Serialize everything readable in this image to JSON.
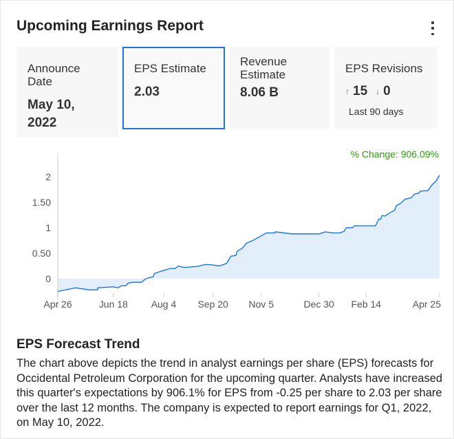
{
  "title": "Upcoming Earnings Report",
  "stats": {
    "announce": {
      "label": "Announce Date",
      "value": "May 10, 2022"
    },
    "eps": {
      "label": "EPS Estimate",
      "value": "2.03"
    },
    "revenue": {
      "label": "Revenue Estimate",
      "value": "8.06 B"
    },
    "revisions": {
      "label": "EPS Revisions",
      "up": "15",
      "down": "0",
      "period": "Last 90 days"
    }
  },
  "percent_change": "% Change: 906.09%",
  "chart_data": {
    "type": "area",
    "x_unit": "days since Apr 26",
    "xlim": [
      0,
      364
    ],
    "ylim": [
      -0.27,
      2.35
    ],
    "y_ticks": [
      {
        "v": 2,
        "label": "2"
      },
      {
        "v": 1.5,
        "label": "1.50"
      },
      {
        "v": 1,
        "label": "1"
      },
      {
        "v": 0.5,
        "label": "0.50"
      },
      {
        "v": 0,
        "label": "0"
      }
    ],
    "x_ticks": [
      {
        "d": 0,
        "label": "Apr 26"
      },
      {
        "d": 53,
        "label": "Jun 18"
      },
      {
        "d": 101,
        "label": "Aug 4"
      },
      {
        "d": 148,
        "label": "Sep 20"
      },
      {
        "d": 194,
        "label": "Nov 5"
      },
      {
        "d": 249,
        "label": "Dec 30"
      },
      {
        "d": 294,
        "label": "Feb 14"
      },
      {
        "d": 364,
        "label": "Apr 25"
      }
    ],
    "series": [
      {
        "name": "EPS estimate",
        "points": [
          [
            0,
            -0.25
          ],
          [
            17,
            -0.18
          ],
          [
            30,
            -0.22
          ],
          [
            38,
            -0.22
          ],
          [
            38,
            -0.18
          ],
          [
            53,
            -0.16
          ],
          [
            57,
            -0.18
          ],
          [
            61,
            -0.14
          ],
          [
            65,
            -0.14
          ],
          [
            67,
            -0.09
          ],
          [
            71,
            -0.07
          ],
          [
            80,
            -0.07
          ],
          [
            84,
            0
          ],
          [
            91,
            0.04
          ],
          [
            92,
            0.1
          ],
          [
            99,
            0.15
          ],
          [
            107,
            0.2
          ],
          [
            112,
            0.2
          ],
          [
            115,
            0.25
          ],
          [
            120,
            0.22
          ],
          [
            133,
            0.24
          ],
          [
            141,
            0.28
          ],
          [
            148,
            0.27
          ],
          [
            154,
            0.25
          ],
          [
            161,
            0.3
          ],
          [
            165,
            0.44
          ],
          [
            170,
            0.46
          ],
          [
            171,
            0.54
          ],
          [
            176,
            0.6
          ],
          [
            180,
            0.7
          ],
          [
            186,
            0.75
          ],
          [
            192,
            0.82
          ],
          [
            199,
            0.9
          ],
          [
            207,
            0.9
          ],
          [
            207.5,
            0.92
          ],
          [
            223,
            0.88
          ],
          [
            249,
            0.88
          ],
          [
            255,
            0.92
          ],
          [
            262,
            0.9
          ],
          [
            269,
            0.9
          ],
          [
            273,
            0.93
          ],
          [
            275,
            1.0
          ],
          [
            281,
            1.0
          ],
          [
            283,
            1.04
          ],
          [
            303,
            1.04
          ],
          [
            306,
            1.17
          ],
          [
            308,
            1.17
          ],
          [
            309,
            1.24
          ],
          [
            312,
            1.23
          ],
          [
            317,
            1.3
          ],
          [
            321,
            1.34
          ],
          [
            323,
            1.44
          ],
          [
            327,
            1.48
          ],
          [
            331,
            1.56
          ],
          [
            337,
            1.59
          ],
          [
            340,
            1.66
          ],
          [
            344,
            1.68
          ],
          [
            346,
            1.72
          ],
          [
            353,
            1.73
          ],
          [
            357,
            1.85
          ],
          [
            360,
            1.9
          ],
          [
            364,
            2.03
          ]
        ]
      }
    ]
  },
  "description": {
    "title": "EPS Forecast Trend",
    "text": "The chart above depicts the trend in analyst earnings per share (EPS) forecasts for Occidental Petroleum Corporation for the upcoming quarter. Analysts have increased this quarter's expectations by 906.1% for EPS from -0.25 per share to 2.03 per share over the last 12 months. The company is expected to report earnings for Q1, 2022, on May 10, 2022."
  }
}
